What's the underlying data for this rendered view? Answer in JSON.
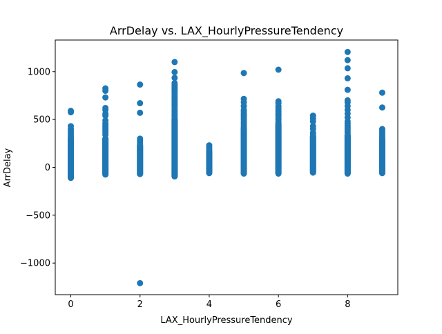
{
  "chart_data": {
    "type": "scatter",
    "title": "ArrDelay vs. LAX_HourlyPressureTendency",
    "xlabel": "LAX_HourlyPressureTendency",
    "ylabel": "ArrDelay",
    "xlim": [
      -0.45,
      9.45
    ],
    "ylim": [
      -1330,
      1330
    ],
    "xticks": [
      0,
      2,
      4,
      6,
      8
    ],
    "xtick_labels": [
      "0",
      "2",
      "4",
      "6",
      "8"
    ],
    "yticks": [
      -1000,
      -500,
      0,
      500,
      1000
    ],
    "ytick_labels": [
      "−1000",
      "−500",
      "0",
      "500",
      "1000"
    ],
    "marker_color": "#1f77b4",
    "grid": false,
    "columns": [
      {
        "x": 0,
        "range": [
          -110,
          300
        ],
        "outliers": [
          590,
          575,
          430,
          400,
          380,
          360,
          340,
          320
        ]
      },
      {
        "x": 1,
        "range": [
          -75,
          300
        ],
        "outliers": [
          825,
          800,
          730,
          620,
          600,
          560,
          540,
          490,
          460,
          440,
          420,
          400,
          380,
          360,
          340
        ]
      },
      {
        "x": 2,
        "range": [
          -70,
          225
        ],
        "outliers": [
          865,
          670,
          570,
          300,
          280,
          260,
          240,
          -1210
        ]
      },
      {
        "x": 3,
        "range": [
          -95,
          500
        ],
        "outliers": [
          1100,
          995,
          935,
          880,
          860,
          840,
          820,
          800,
          780,
          760,
          740,
          720,
          700,
          680,
          660,
          640,
          620,
          600,
          580,
          560,
          540,
          520
        ]
      },
      {
        "x": 4,
        "range": [
          -60,
          165
        ],
        "outliers": [
          230,
          210,
          190
        ]
      },
      {
        "x": 5,
        "range": [
          -65,
          400
        ],
        "outliers": [
          985,
          715,
          680,
          640,
          600,
          580,
          560,
          540,
          520,
          500,
          480,
          460,
          440,
          420
        ]
      },
      {
        "x": 6,
        "range": [
          -65,
          450
        ],
        "outliers": [
          1020,
          690,
          670,
          640,
          620,
          600,
          580,
          560,
          540,
          520,
          500,
          480,
          460
        ]
      },
      {
        "x": 7,
        "range": [
          -55,
          320
        ],
        "outliers": [
          540,
          510,
          480,
          430,
          400,
          360,
          340
        ]
      },
      {
        "x": 8,
        "range": [
          -65,
          330
        ],
        "outliers": [
          1205,
          1120,
          1035,
          930,
          810,
          700,
          680,
          640,
          600,
          560,
          520,
          480,
          460,
          440,
          420,
          400,
          380,
          360,
          340
        ]
      },
      {
        "x": 9,
        "range": [
          -60,
          290
        ],
        "outliers": [
          780,
          625,
          400,
          380,
          360,
          340,
          320,
          300
        ]
      }
    ]
  }
}
